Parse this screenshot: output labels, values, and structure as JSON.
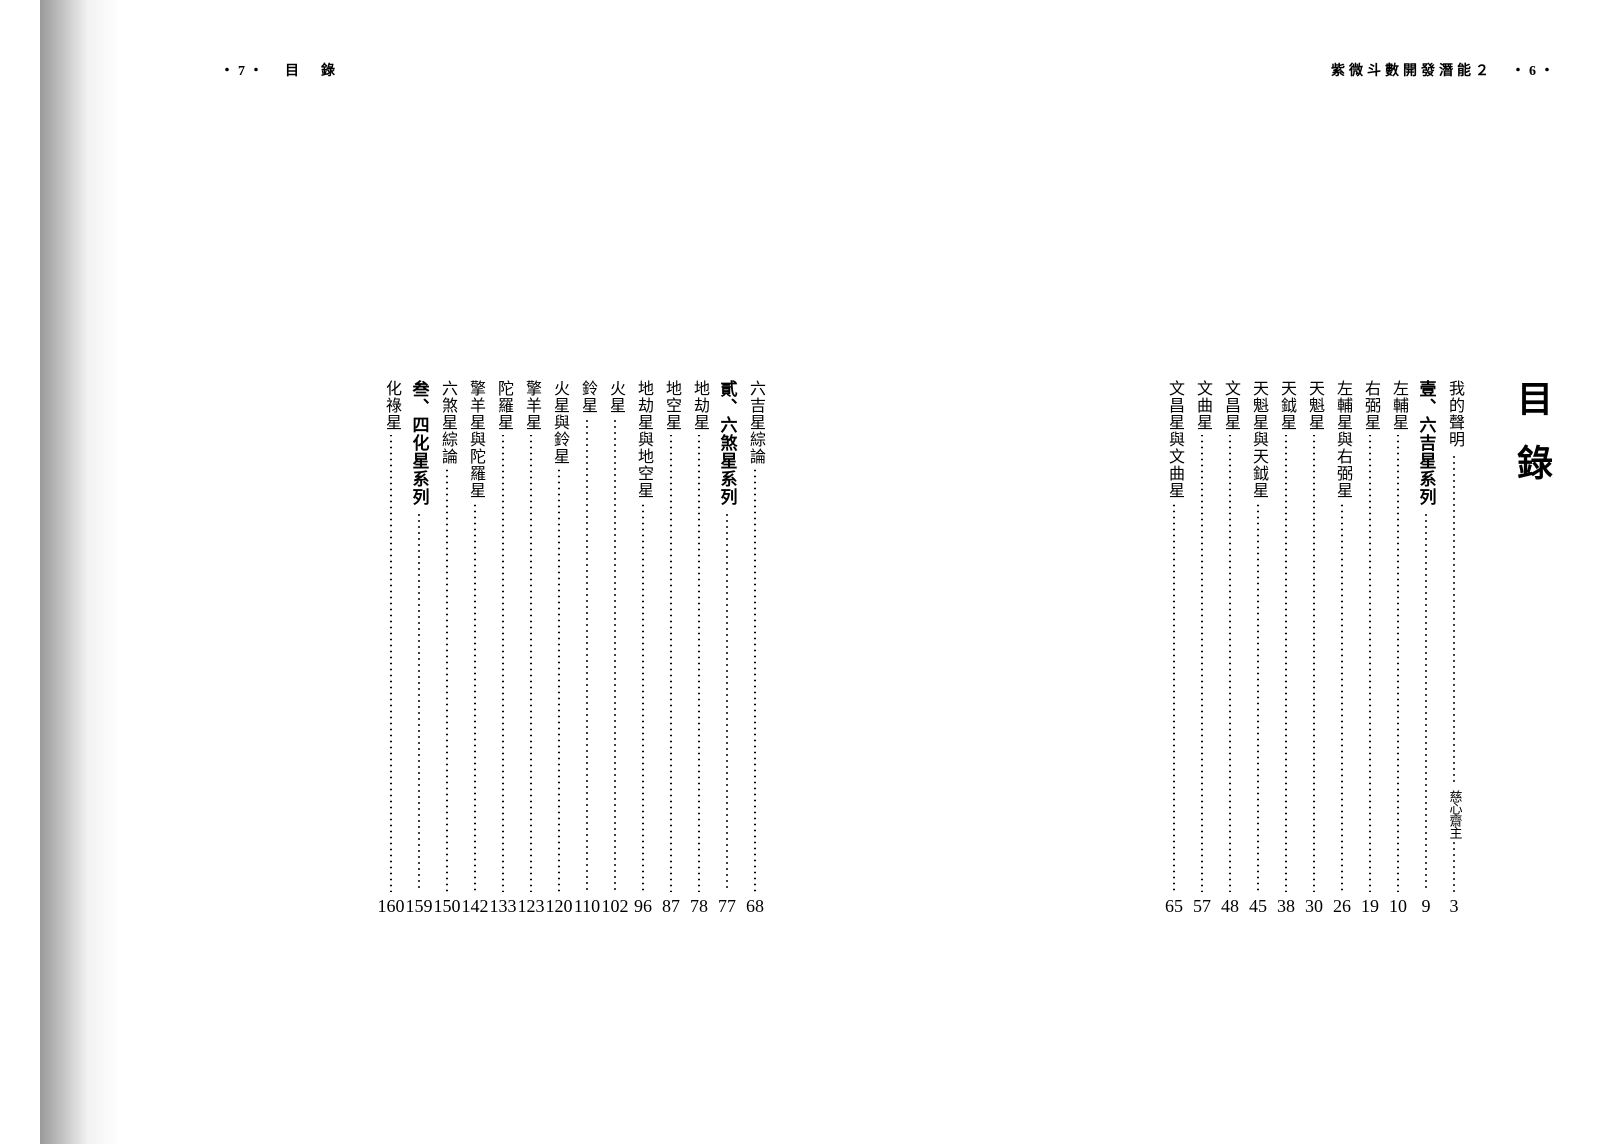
{
  "left_header": "・7・　目　錄",
  "right_header": "紫微斗數開發潛能２　・6・",
  "main_title": "目錄",
  "right_page_entries": [
    {
      "label": "我的聲明",
      "trail": "慈心齋主",
      "page": "3",
      "bold": false
    },
    {
      "label": "壹、六吉星系列",
      "trail": "",
      "page": "9",
      "bold": true
    },
    {
      "label": "左輔星",
      "trail": "",
      "page": "10",
      "bold": false
    },
    {
      "label": "右弼星",
      "trail": "",
      "page": "19",
      "bold": false
    },
    {
      "label": "左輔星與右弼星",
      "trail": "",
      "page": "26",
      "bold": false
    },
    {
      "label": "天魁星",
      "trail": "",
      "page": "30",
      "bold": false
    },
    {
      "label": "天鉞星",
      "trail": "",
      "page": "38",
      "bold": false
    },
    {
      "label": "天魁星與天鉞星",
      "trail": "",
      "page": "45",
      "bold": false
    },
    {
      "label": "文昌星",
      "trail": "",
      "page": "48",
      "bold": false
    },
    {
      "label": "文曲星",
      "trail": "",
      "page": "57",
      "bold": false
    },
    {
      "label": "文昌星與文曲星",
      "trail": "",
      "page": "65",
      "bold": false
    }
  ],
  "left_page_entries": [
    {
      "label": "六吉星綜論",
      "trail": "",
      "page": "68",
      "bold": false
    },
    {
      "label": "貳、六煞星系列",
      "trail": "",
      "page": "77",
      "bold": true
    },
    {
      "label": "地劫星",
      "trail": "",
      "page": "78",
      "bold": false
    },
    {
      "label": "地空星",
      "trail": "",
      "page": "87",
      "bold": false
    },
    {
      "label": "地劫星與地空星",
      "trail": "",
      "page": "96",
      "bold": false
    },
    {
      "label": "火星",
      "trail": "",
      "page": "102",
      "bold": false
    },
    {
      "label": "鈴星",
      "trail": "",
      "page": "110",
      "bold": false
    },
    {
      "label": "火星與鈴星",
      "trail": "",
      "page": "120",
      "bold": false
    },
    {
      "label": "擎羊星",
      "trail": "",
      "page": "123",
      "bold": false
    },
    {
      "label": "陀羅星",
      "trail": "",
      "page": "133",
      "bold": false
    },
    {
      "label": "擎羊星與陀羅星",
      "trail": "",
      "page": "142",
      "bold": false
    },
    {
      "label": "六煞星綜論",
      "trail": "",
      "page": "150",
      "bold": false
    },
    {
      "label": "叁、四化星系列",
      "trail": "",
      "page": "159",
      "bold": true
    },
    {
      "label": "化祿星",
      "trail": "",
      "page": "160",
      "bold": false
    }
  ]
}
